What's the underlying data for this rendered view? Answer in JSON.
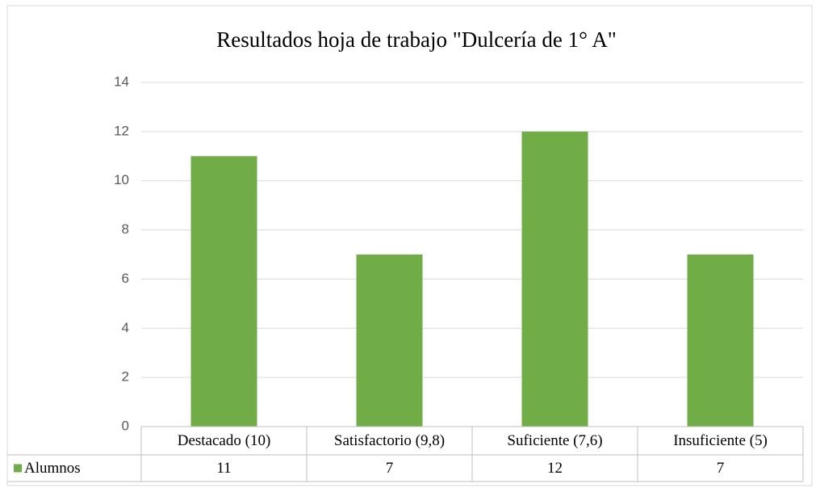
{
  "chart_data": {
    "type": "bar",
    "title": "Resultados hoja de trabajo \"Dulcería de 1° A\"",
    "categories": [
      "Destacado (10)",
      "Satisfactorio (9,8)",
      "Suficiente (7,6)",
      "Insuficiente (5)"
    ],
    "series": [
      {
        "name": "Alumnos",
        "color": "#70ad47",
        "values": [
          11,
          7,
          12,
          7
        ]
      }
    ],
    "ylim": [
      0,
      14
    ],
    "yticks": [
      0,
      2,
      4,
      6,
      8,
      10,
      12,
      14
    ],
    "grid": true,
    "data_table": true
  }
}
